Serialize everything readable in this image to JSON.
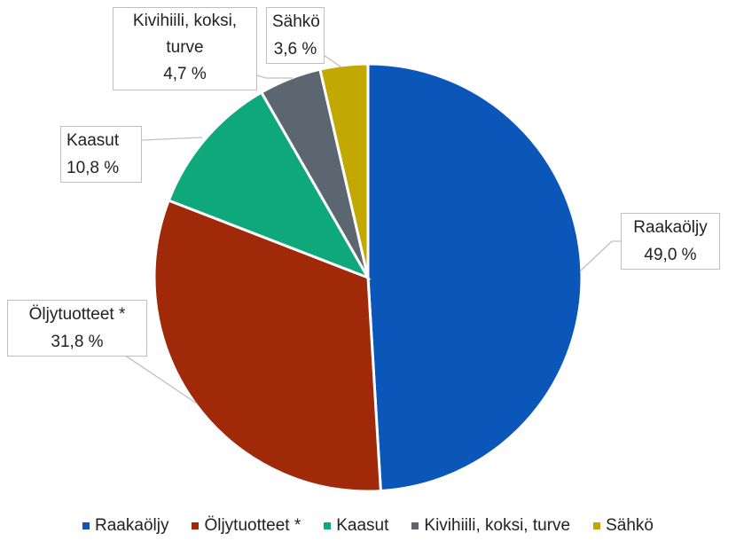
{
  "chart_data": {
    "type": "pie",
    "categories": [
      "Raakaöljy",
      "Öljytuotteet *",
      "Kaasut",
      "Kivihiili, koksi, turve",
      "Sähkö"
    ],
    "values": [
      49.0,
      31.8,
      10.8,
      4.7,
      3.6
    ],
    "value_labels": [
      "49,0 %",
      "31,8 %",
      "10,8 %",
      "4,7 %",
      "3,6 %"
    ],
    "colors": [
      "#0b57b9",
      "#a0290a",
      "#0fa87a",
      "#5b6670",
      "#c2a800"
    ],
    "legend": "bottom"
  }
}
